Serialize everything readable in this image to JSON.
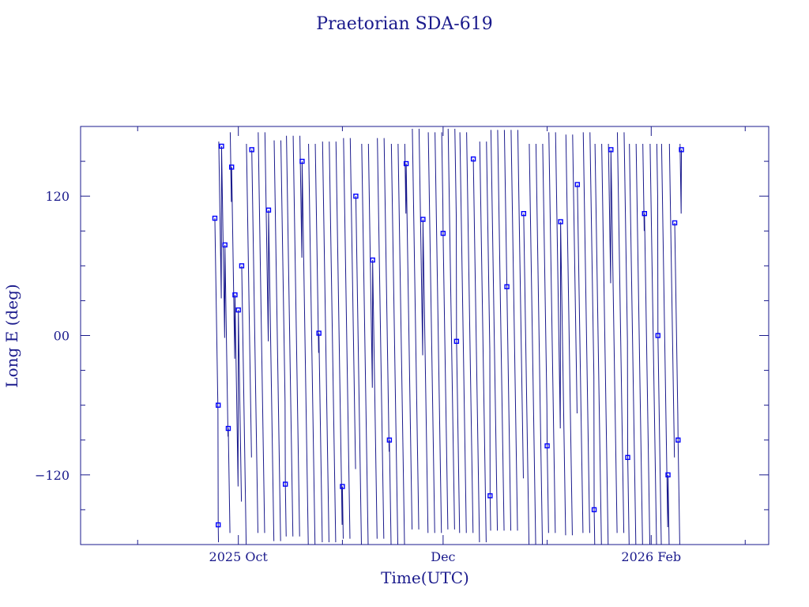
{
  "chart_data": {
    "type": "scatter",
    "title": "Praetorian SDA-619",
    "xlabel": "Time(UTC)",
    "ylabel": "Long E (deg)",
    "x_range": [
      "2025-08-15",
      "2026-03-08"
    ],
    "y_range": [
      -180,
      180
    ],
    "x_ticks": [
      {
        "date": "2025-10-01",
        "label": "2025 Oct"
      },
      {
        "date": "2025-12-01",
        "label": "Dec"
      },
      {
        "date": "2026-02-01",
        "label": "2026 Feb"
      }
    ],
    "y_ticks": [
      {
        "value": 120,
        "label": "120"
      },
      {
        "value": 0,
        "label": "00"
      },
      {
        "value": -120,
        "label": "−120"
      }
    ],
    "grid": false,
    "line_color": "#1a1a8c",
    "marker_color": "#0000ff",
    "marker": "square",
    "data_start": "2025-09-24",
    "data_end": "2026-02-10",
    "drift_direction": "westward",
    "samples": [
      {
        "date": "2025-09-24",
        "long": 101
      },
      {
        "date": "2025-09-25",
        "long": -60
      },
      {
        "date": "2025-09-25",
        "long": -163
      },
      {
        "date": "2025-09-26",
        "long": 163
      },
      {
        "date": "2025-09-27",
        "long": 78
      },
      {
        "date": "2025-09-28",
        "long": -80
      },
      {
        "date": "2025-09-29",
        "long": 145
      },
      {
        "date": "2025-09-30",
        "long": 35
      },
      {
        "date": "2025-10-01",
        "long": 22
      },
      {
        "date": "2025-10-02",
        "long": 60
      },
      {
        "date": "2025-10-05",
        "long": 160
      },
      {
        "date": "2025-10-10",
        "long": 108
      },
      {
        "date": "2025-10-15",
        "long": -128
      },
      {
        "date": "2025-10-20",
        "long": 150
      },
      {
        "date": "2025-10-25",
        "long": 2
      },
      {
        "date": "2025-11-01",
        "long": -130
      },
      {
        "date": "2025-11-05",
        "long": 120
      },
      {
        "date": "2025-11-10",
        "long": 65
      },
      {
        "date": "2025-11-15",
        "long": -90
      },
      {
        "date": "2025-11-20",
        "long": 148
      },
      {
        "date": "2025-11-25",
        "long": 100
      },
      {
        "date": "2025-12-01",
        "long": 88
      },
      {
        "date": "2025-12-05",
        "long": -5
      },
      {
        "date": "2025-12-10",
        "long": 152
      },
      {
        "date": "2025-12-15",
        "long": -138
      },
      {
        "date": "2025-12-20",
        "long": 42
      },
      {
        "date": "2025-12-25",
        "long": 105
      },
      {
        "date": "2026-01-01",
        "long": -95
      },
      {
        "date": "2026-01-05",
        "long": 98
      },
      {
        "date": "2026-01-10",
        "long": 130
      },
      {
        "date": "2026-01-15",
        "long": -150
      },
      {
        "date": "2026-01-20",
        "long": 160
      },
      {
        "date": "2026-01-25",
        "long": -105
      },
      {
        "date": "2026-01-30",
        "long": 105
      },
      {
        "date": "2026-02-03",
        "long": 0
      },
      {
        "date": "2026-02-06",
        "long": -120
      },
      {
        "date": "2026-02-08",
        "long": 97
      },
      {
        "date": "2026-02-09",
        "long": -90
      },
      {
        "date": "2026-02-10",
        "long": 160
      }
    ]
  }
}
